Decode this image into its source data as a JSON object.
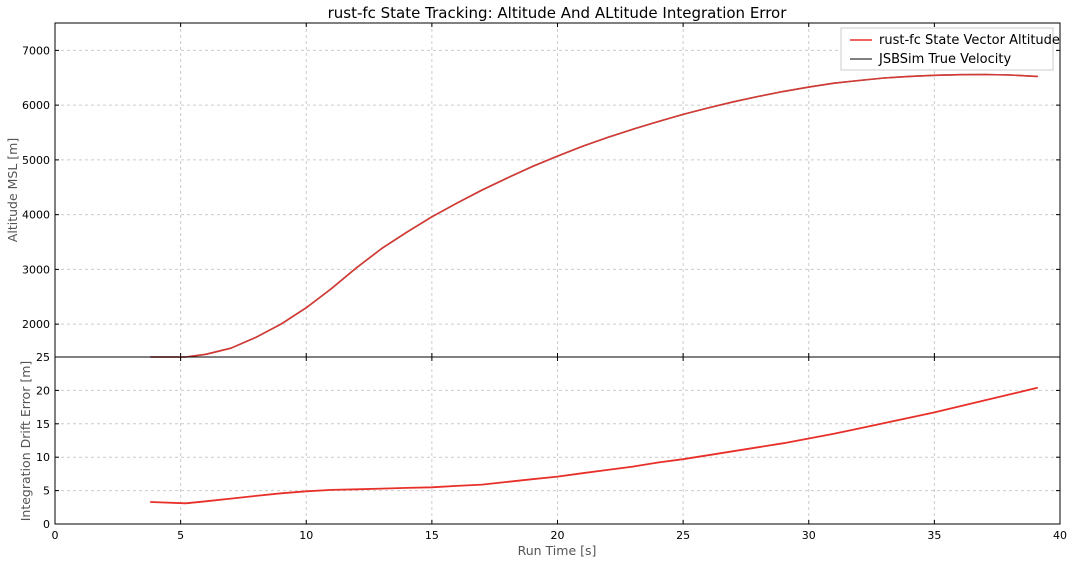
{
  "chart_data": [
    {
      "type": "line",
      "title": "rust-fc State Tracking: Altitude And ALtitude Integration Error",
      "xlabel": "",
      "ylabel": "Altitude MSL [m]",
      "xlim": [
        0,
        40
      ],
      "ylim": [
        1400,
        7500
      ],
      "yticks": [
        2000,
        3000,
        4000,
        5000,
        6000,
        7000
      ],
      "grid": true,
      "legend_position": "top-right",
      "series": [
        {
          "name": "rust-fc State Vector Altitude",
          "color": "#e8302a",
          "x": [
            3.8,
            5.2,
            6,
            7,
            8,
            9,
            10,
            11,
            12,
            13,
            14,
            15,
            16,
            17,
            18,
            19,
            20,
            21,
            22,
            23,
            24,
            25,
            26,
            27,
            28,
            29,
            30,
            31,
            32,
            33,
            34,
            35,
            36,
            37,
            38,
            39.1
          ],
          "y": [
            1400,
            1400,
            1450,
            1560,
            1760,
            2000,
            2300,
            2650,
            3030,
            3380,
            3680,
            3960,
            4210,
            4450,
            4670,
            4880,
            5070,
            5250,
            5410,
            5560,
            5700,
            5830,
            5950,
            6060,
            6160,
            6250,
            6330,
            6400,
            6450,
            6495,
            6525,
            6545,
            6555,
            6560,
            6550,
            6525
          ]
        },
        {
          "name": "JSBSim True Velocity",
          "color": "#555555",
          "x": [
            3.8,
            5.2,
            6,
            7,
            8,
            9,
            10,
            11,
            12,
            13,
            14,
            15,
            16,
            17,
            18,
            19,
            20,
            21,
            22,
            23,
            24,
            25,
            26,
            27,
            28,
            29,
            30,
            31,
            32,
            33,
            34,
            35,
            36,
            37,
            38,
            39.1
          ],
          "y": [
            1400,
            1400,
            1450,
            1560,
            1760,
            2000,
            2300,
            2650,
            3030,
            3380,
            3680,
            3960,
            4210,
            4450,
            4670,
            4880,
            5070,
            5250,
            5410,
            5560,
            5700,
            5830,
            5950,
            6060,
            6160,
            6250,
            6330,
            6400,
            6450,
            6495,
            6525,
            6545,
            6555,
            6560,
            6550,
            6525
          ]
        }
      ]
    },
    {
      "type": "line",
      "title": "",
      "xlabel": "Run Time [s]",
      "ylabel": "Integration Drift Error [m]",
      "xlim": [
        0,
        40
      ],
      "ylim": [
        0,
        25
      ],
      "xticks": [
        0,
        5,
        10,
        15,
        20,
        25,
        30,
        35,
        40
      ],
      "yticks": [
        0,
        5,
        10,
        15,
        20,
        25
      ],
      "grid": true,
      "series": [
        {
          "name": "",
          "color": "#e8302a",
          "x": [
            3.8,
            5.2,
            6,
            7,
            8,
            9,
            10,
            11,
            12,
            13,
            14,
            15,
            16,
            17,
            18,
            19,
            20,
            21,
            22,
            23,
            24,
            25,
            26,
            27,
            28,
            29,
            30,
            31,
            32,
            33,
            34,
            35,
            36,
            37,
            38,
            39.1
          ],
          "y": [
            3.3,
            3.1,
            3.4,
            3.8,
            4.2,
            4.6,
            4.9,
            5.1,
            5.2,
            5.3,
            5.4,
            5.5,
            5.7,
            5.9,
            6.3,
            6.7,
            7.1,
            7.6,
            8.1,
            8.6,
            9.2,
            9.7,
            10.3,
            10.9,
            11.5,
            12.1,
            12.8,
            13.5,
            14.3,
            15.1,
            15.9,
            16.7,
            17.6,
            18.5,
            19.4,
            20.4
          ]
        }
      ]
    }
  ]
}
